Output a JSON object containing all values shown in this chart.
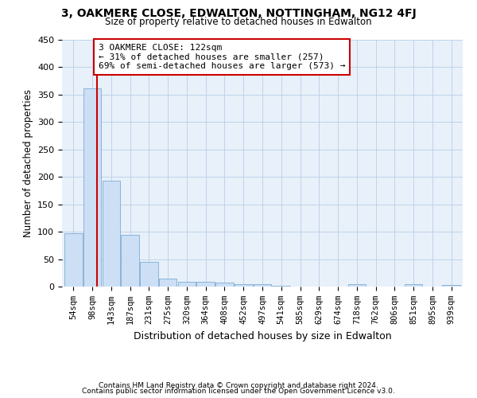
{
  "title1": "3, OAKMERE CLOSE, EDWALTON, NOTTINGHAM, NG12 4FJ",
  "title2": "Size of property relative to detached houses in Edwalton",
  "xlabel": "Distribution of detached houses by size in Edwalton",
  "ylabel": "Number of detached properties",
  "footer1": "Contains HM Land Registry data © Crown copyright and database right 2024.",
  "footer2": "Contains public sector information licensed under the Open Government Licence v3.0.",
  "bin_labels": [
    "54sqm",
    "98sqm",
    "143sqm",
    "187sqm",
    "231sqm",
    "275sqm",
    "320sqm",
    "364sqm",
    "408sqm",
    "452sqm",
    "497sqm",
    "541sqm",
    "585sqm",
    "629sqm",
    "674sqm",
    "718sqm",
    "762sqm",
    "806sqm",
    "851sqm",
    "895sqm",
    "939sqm"
  ],
  "bar_values": [
    97,
    361,
    193,
    95,
    45,
    15,
    9,
    9,
    7,
    5,
    5,
    2,
    0,
    0,
    0,
    5,
    0,
    0,
    5,
    0,
    3
  ],
  "bar_color": "#ccdff5",
  "bar_edge_color": "#8ab4d8",
  "vline_x": 1.25,
  "vline_color": "#cc0000",
  "annotation_text": "3 OAKMERE CLOSE: 122sqm\n← 31% of detached houses are smaller (257)\n69% of semi-detached houses are larger (573) →",
  "annotation_box_color": "#ffffff",
  "annotation_box_edge": "#cc0000",
  "ylim": [
    0,
    450
  ],
  "yticks": [
    0,
    50,
    100,
    150,
    200,
    250,
    300,
    350,
    400,
    450
  ],
  "grid_color": "#b8cfe8",
  "background_color": "#e8f0fa"
}
